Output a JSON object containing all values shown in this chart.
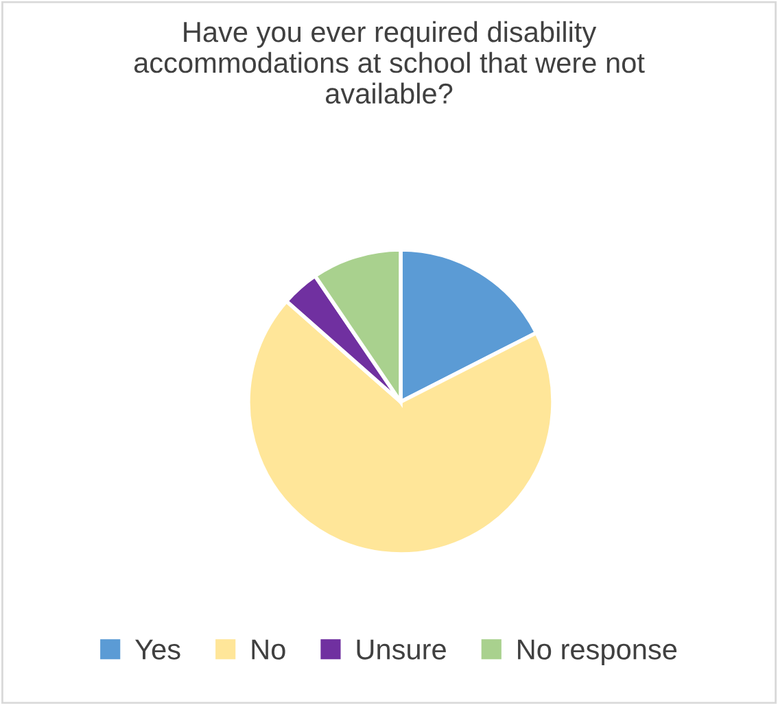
{
  "chart_data": {
    "type": "pie",
    "title": "Have you ever required disability accommodations at school that were not available?",
    "categories": [
      "Yes",
      "No",
      "Unsure",
      "No response"
    ],
    "values": [
      17.5,
      69,
      4,
      9.5
    ],
    "colors": [
      "#5b9bd5",
      "#ffe699",
      "#7030a0",
      "#a9d18e"
    ],
    "legend": "bottom"
  }
}
